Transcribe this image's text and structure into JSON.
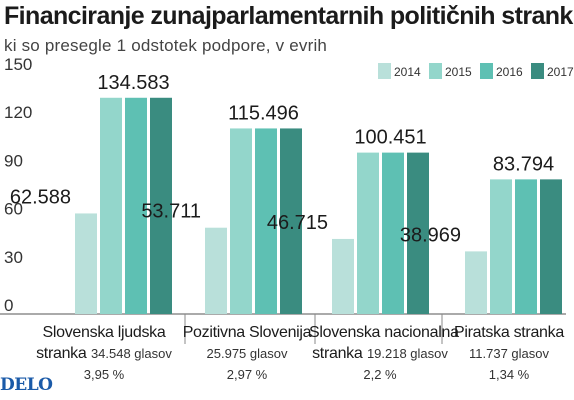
{
  "title": "Financiranje zunajparlamentarnih političnih strank",
  "subtitle": "ki so presegle 1 odstotek podpore, v evrih",
  "logo": "DELO",
  "colors": {
    "2014": "#b9e0da",
    "2015": "#93d6cb",
    "2016": "#5ec0b3",
    "2017": "#3a8c80"
  },
  "chart_data": {
    "type": "bar",
    "categories": [
      "Slovenska ljudska stranka",
      "Pozitivna Slovenija",
      "Slovenska nacionalna stranka",
      "Piratska stranka"
    ],
    "series": [
      {
        "name": "2014",
        "values": [
          62.588,
          53.711,
          46.715,
          38.969
        ]
      },
      {
        "name": "2015",
        "values": [
          134.583,
          115.496,
          100.451,
          83.794
        ]
      },
      {
        "name": "2016",
        "values": [
          134.583,
          115.496,
          100.451,
          83.794
        ]
      },
      {
        "name": "2017",
        "values": [
          134.583,
          115.496,
          100.451,
          83.794
        ]
      }
    ],
    "data_labels": [
      {
        "first": "62.588",
        "max": "134.583"
      },
      {
        "first": "53.711",
        "max": "115.496"
      },
      {
        "first": "46.715",
        "max": "100.451"
      },
      {
        "first": "38.969",
        "max": "83.794"
      }
    ],
    "yticks": [
      "0",
      "30",
      "60",
      "90",
      "120",
      "150"
    ],
    "ylim": [
      0,
      150
    ],
    "legend_position": "top-right",
    "grid": false
  },
  "party_labels": [
    {
      "line1": "Slovenska ljudska",
      "line2": "stranka",
      "glasov": "34.548 glasov",
      "percent": "3,95 %"
    },
    {
      "line1": "Pozitivna Slovenija",
      "line2": "",
      "glasov": "25.975 glasov",
      "percent": "2,97 %"
    },
    {
      "line1": "Slovenska nacionalna",
      "line2": "stranka",
      "glasov": "19.218 glasov",
      "percent": "2,2 %"
    },
    {
      "line1": "Piratska stranka",
      "line2": "",
      "glasov": "11.737 glasov",
      "percent": "1,34 %"
    }
  ]
}
